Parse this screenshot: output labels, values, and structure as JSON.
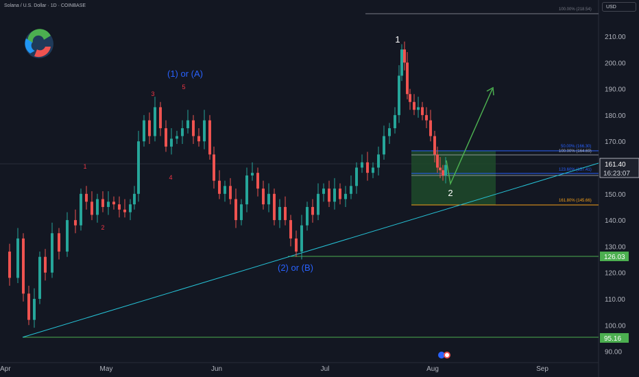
{
  "header": {
    "title": "Solana / U.S. Dollar · 1D · COINBASE",
    "currency": "USD"
  },
  "price_axis": {
    "ticks": [
      "210.00",
      "200.00",
      "190.00",
      "180.00",
      "170.00",
      "160.00",
      "150.00",
      "140.00",
      "130.00",
      "120.00",
      "110.00",
      "100.00",
      "90.00"
    ]
  },
  "time_axis": {
    "ticks": [
      "Apr",
      "May",
      "Jun",
      "Jul",
      "Aug",
      "Sep"
    ]
  },
  "price_tags": {
    "current_price": "161.40",
    "countdown": "16:23:07",
    "level_126": "126.03",
    "level_95": "95.16"
  },
  "fib_labels": {
    "top": "100.00% (218.54)",
    "f50": "50.00% (166.30)",
    "f100": "100.00% (164.69)",
    "f123": "123.60% (157.41)",
    "f161": "161.80% (145.66)"
  },
  "wave_labels": {
    "big1": "1",
    "big2": "2",
    "wave1A": "(1) or (A)",
    "wave2B": "(2) or (B)",
    "s1": "1",
    "s2": "2",
    "s3": "3",
    "s4": "4",
    "s5": "5"
  },
  "colors": {
    "background": "#131722",
    "up": "#26a69a",
    "down": "#ef5350",
    "wave_blue": "#2962ff",
    "wave_red": "#f23645",
    "arrow_green": "#4caf50",
    "trendline": "#26c6da",
    "fib_orange": "#f7a21b",
    "support_green": "#4caf50"
  },
  "chart_data": {
    "type": "candlestick",
    "title": "Solana / U.S. Dollar · 1D · COINBASE",
    "ylim": [
      86,
      225
    ],
    "y_unit": "USD",
    "x_ticks": [
      "Apr",
      "May",
      "Jun",
      "Jul",
      "Aug",
      "Sep"
    ],
    "price_path_keypoints": [
      [
        "late Mar",
        128
      ],
      [
        "early Apr",
        102
      ],
      [
        "mid Apr",
        137
      ],
      [
        "late Apr",
        147
      ],
      [
        "early May",
        143
      ],
      [
        "late May",
        183
      ],
      [
        "early Jun",
        168
      ],
      [
        "mid Jun",
        140
      ],
      [
        "late Jun",
        127
      ],
      [
        "early Jul",
        147
      ],
      [
        "mid Jul",
        168
      ],
      [
        "late Jul",
        205
      ],
      [
        "early Aug",
        158
      ]
    ],
    "fib_levels": [
      {
        "label": "100.00%",
        "price": 218.54
      },
      {
        "label": "50.00%",
        "price": 166.3
      },
      {
        "label": "100.00%",
        "price": 164.69
      },
      {
        "label": "123.60%",
        "price": 157.41
      },
      {
        "label": "161.80%",
        "price": 145.66
      }
    ],
    "horizontal_levels": [
      126.03,
      95.16
    ],
    "last_price": 161.4
  }
}
